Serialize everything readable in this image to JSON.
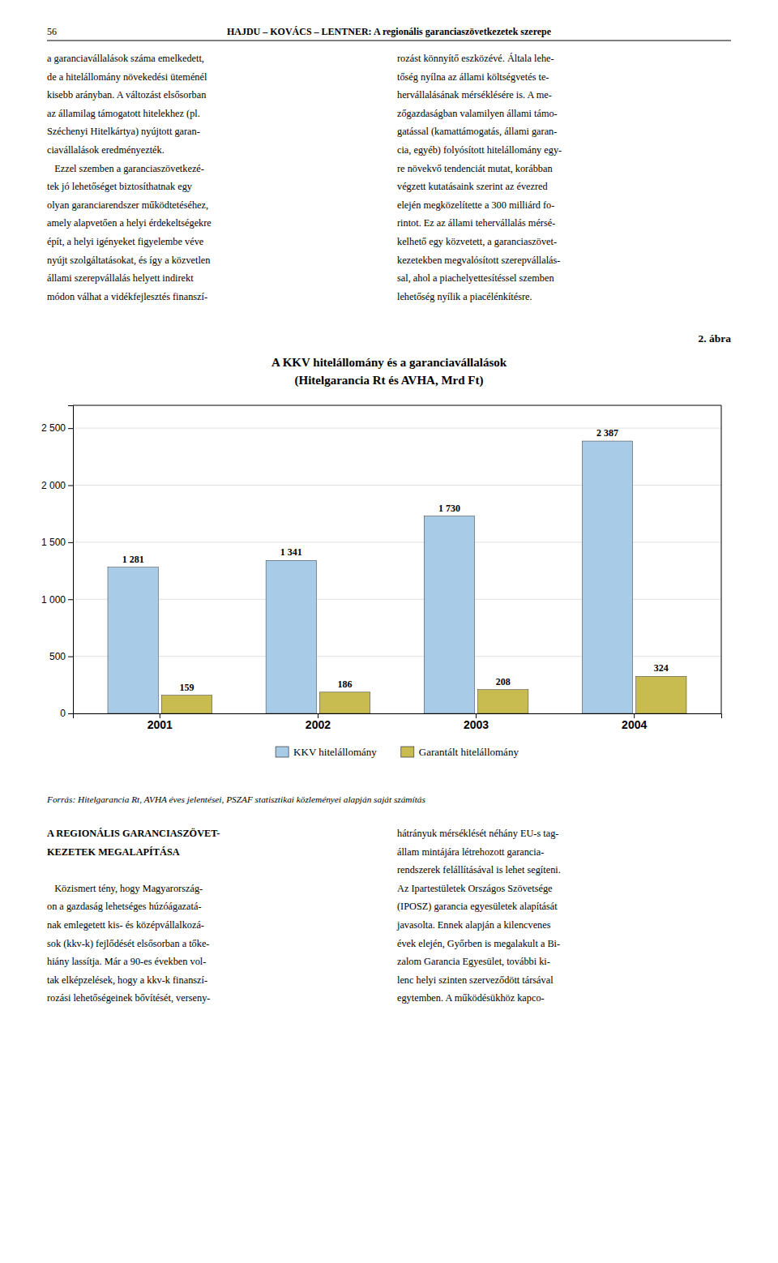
{
  "chart_data": {
    "type": "bar",
    "title": "A KKV hitelállomány és a garanciavállalások",
    "subtitle": "(Hitelgarancia Rt és AVHA, Mrd Ft)",
    "categories": [
      "2001",
      "2002",
      "2003",
      "2004"
    ],
    "series": [
      {
        "name": "KKV hitelállomány",
        "color": "#a8cce8",
        "values": [
          1281,
          1341,
          1730,
          2387
        ],
        "value_labels": [
          "1 281",
          "1 341",
          "1 730",
          "2 387"
        ]
      },
      {
        "name": "Garantált hitelállomány",
        "color": "#c8bc50",
        "values": [
          159,
          186,
          208,
          324
        ]
      }
    ],
    "ylim": [
      0,
      2700
    ],
    "yticks": [
      0,
      500,
      {
        "value": 1000,
        "label": "1 000"
      },
      {
        "value": 1500,
        "label": "1 500"
      },
      {
        "value": 2000,
        "label": "2 000"
      },
      {
        "value": 2500,
        "label": "2 500"
      }
    ],
    "grid": true,
    "legend": "bottom",
    "data_labels": true
  },
  "page": {
    "header_num": "56",
    "header_title": "HAJDU – KOVÁCS – LENTNER: A regionális garanciaszövetkezetek szerepe",
    "figure_label": "2. ábra",
    "source": "Forrás: Hitelgarancia Rt, AVHA éves jelentései, PSZAF statisztikai közleményei alapján saját számítás",
    "col1_lines": [
      "a garanciavállalások száma emelkedett,",
      "de a hitelállomány növekedési üteménél",
      "kisebb arányban. A változást elsősorban",
      "az államilag támogatott hitelekhez (pl.",
      "Széchenyi Hitelkártya) nyújtott garan-",
      "ciavállalások eredményezték.",
      "   Ezzel szemben a garanciaszövetkezé-",
      "tek jó lehetőséget biztosíthatnak egy",
      "olyan garanciarendszer működtetéséhez,",
      "amely alapvetően a helyi érdekeltségekre",
      "épít, a helyi igényeket figyelembe véve",
      "nyújt szolgáltatásokat, és így a közvetlen",
      "állami szerepvállalás helyett indirekt",
      "módon válhat a vidékfejlesztés finanszí-"
    ],
    "col2_lines": [
      "rozást könnyítő eszközévé. Általa lehe-",
      "tőség nyílna az állami költségvetés te-",
      "hervállalásának mérséklésére is. A me-",
      "zőgazdaságban valamilyen állami támo-",
      "gatással (kamattámogatás, állami garan-",
      "cia, egyéb) folyósított hitelállomány egy-",
      "re növekvő tendenciát mutat, korábban",
      "végzett kutatásaink szerint az évezred",
      "elején megközelítette a 300 milliárd fo-",
      "rintot. Ez az állami tehervállalás mérsé-",
      "kelhető egy közvetett, a garanciaszövet-",
      "kezetekben megvalósított szerepvállalás-",
      "sal, ahol a piachelyettesítéssel szemben",
      "lehetőség nyílik a piacélénkítésre."
    ],
    "col3_heading": [
      "A REGIONÁLIS GARANCIASZÖVET-",
      "KEZETEK MEGALAPÍTÁSA"
    ],
    "col3_lines": [
      "   Közismert tény, hogy Magyarország-",
      "on a gazdaság lehetséges húzóágazatá-",
      "nak emlegetett kis- és középvállalkozá-",
      "sok (kkv-k) fejlődését elsősorban a tőke-",
      "hiány lassítja. Már a 90-es években vol-",
      "tak elképzelések, hogy a kkv-k finanszí-",
      "rozási lehetőségeinek bővítését, verseny-"
    ],
    "col4_lines": [
      "hátrányuk mérséklését néhány EU-s tag-",
      "állam mintájára létrehozott garancia-",
      "rendszerek felállításával is lehet segíteni.",
      "Az Ipartestületek Országos Szövetsége",
      "(IPOSZ) garancia egyesületek alapítását",
      "javasolta. Ennek alapján a kilencvenes",
      "évek elején, Győrben is megalakult a Bi-",
      "zalom Garancia Egyesület, további ki-",
      "lenc helyi szinten szerveződött társával",
      "egytemben. A működésükhöz kapco-"
    ]
  }
}
